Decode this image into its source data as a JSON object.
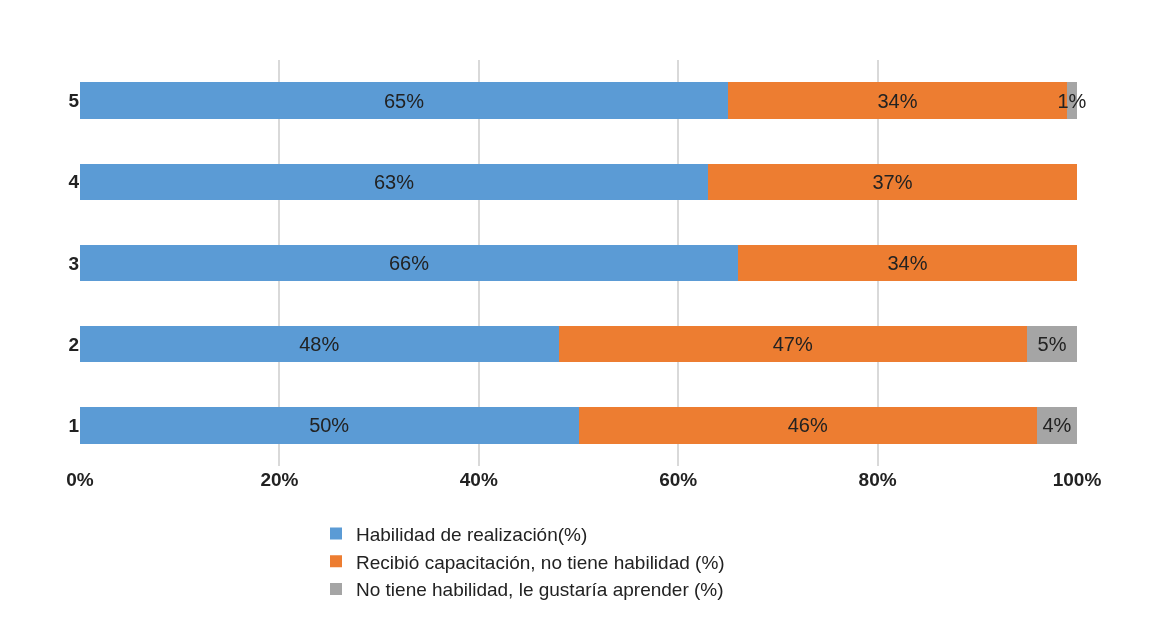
{
  "chart_data": {
    "type": "bar",
    "orientation": "horizontal",
    "stacked": true,
    "categories": [
      "5",
      "4",
      "3",
      "2",
      "1"
    ],
    "series": [
      {
        "name": "Habilidad de realización(%)",
        "color": "#5b9bd5",
        "values": [
          65,
          63,
          66,
          48,
          50
        ],
        "value_labels": [
          "65%",
          "63%",
          "66%",
          "48%",
          "50%"
        ]
      },
      {
        "name": "Recibió capacitación, no tiene habilidad (%)",
        "color": "#ed7d31",
        "values": [
          34,
          37,
          34,
          47,
          46
        ],
        "value_labels": [
          "34%",
          "37%",
          "34%",
          "47%",
          "46%"
        ]
      },
      {
        "name": "No tiene habilidad, le gustaría aprender (%)",
        "color": "#a5a5a5",
        "values": [
          1,
          null,
          null,
          5,
          4
        ],
        "value_labels": [
          "1%",
          null,
          null,
          "5%",
          "4%"
        ]
      }
    ],
    "xlim": [
      0,
      100
    ],
    "xticks": [
      {
        "value": 0,
        "label": "0%"
      },
      {
        "value": 20,
        "label": "20%"
      },
      {
        "value": 40,
        "label": "40%"
      },
      {
        "value": 60,
        "label": "60%"
      },
      {
        "value": 80,
        "label": "80%"
      },
      {
        "value": 100,
        "label": "100%"
      }
    ],
    "grid": "x",
    "legend": "bottom"
  }
}
